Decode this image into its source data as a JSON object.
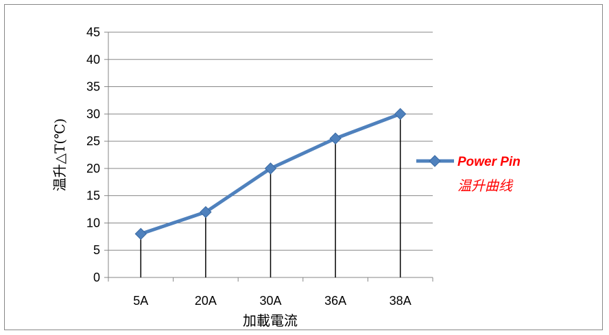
{
  "chart_data": {
    "type": "line",
    "categories": [
      "5A",
      "20A",
      "30A",
      "36A",
      "38A"
    ],
    "series": [
      {
        "name": "Power Pin",
        "name_line2": "温升曲线",
        "values": [
          8,
          12,
          20,
          25.5,
          30
        ]
      }
    ],
    "yticks": [
      "0",
      "5",
      "10",
      "15",
      "20",
      "25",
      "30",
      "35",
      "40",
      "45"
    ],
    "ylim": [
      0,
      45
    ],
    "xlabel": "加載電流",
    "ylabel": "温升△T(℃)",
    "grid": true,
    "drop_lines": true,
    "legend_position": "right",
    "colors": {
      "series": "#4f81bd",
      "legend_text": "#ff0000",
      "grid": "#868686"
    }
  }
}
